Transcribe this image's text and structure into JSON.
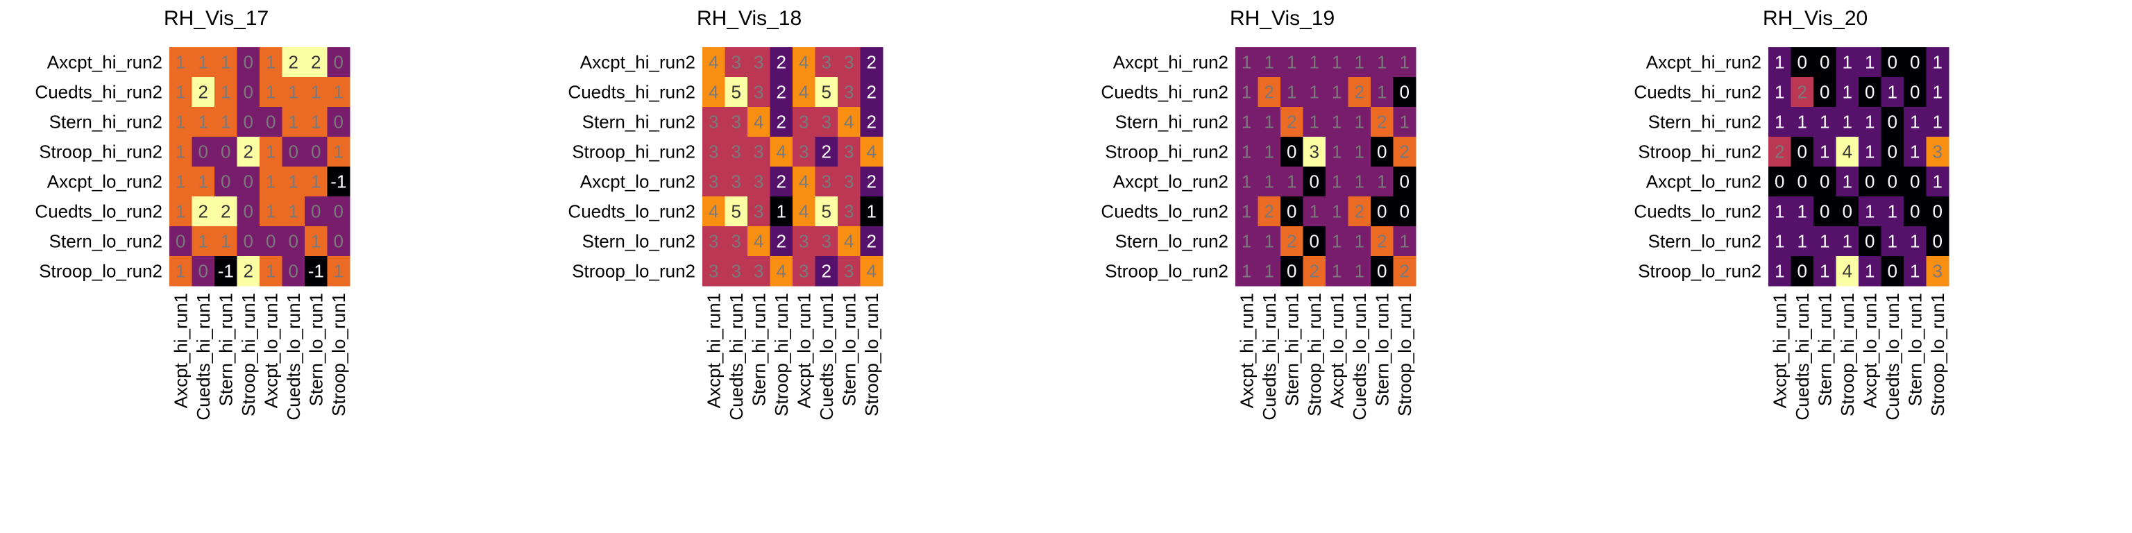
{
  "chart_data": [
    {
      "type": "heatmap",
      "title": "RH_Vis_17",
      "x_labels": [
        "Axcpt_hi_run1",
        "Cuedts_hi_run1",
        "Stern_hi_run1",
        "Stroop_hi_run1",
        "Axcpt_lo_run1",
        "Cuedts_lo_run1",
        "Stern_lo_run1",
        "Stroop_lo_run1"
      ],
      "y_labels": [
        "Axcpt_hi_run2",
        "Cuedts_hi_run2",
        "Stern_hi_run2",
        "Stroop_hi_run2",
        "Axcpt_lo_run2",
        "Cuedts_lo_run2",
        "Stern_lo_run2",
        "Stroop_lo_run2"
      ],
      "values": [
        [
          1,
          1,
          1,
          0,
          1,
          2,
          2,
          0
        ],
        [
          1,
          2,
          1,
          0,
          1,
          1,
          1,
          1
        ],
        [
          1,
          1,
          1,
          0,
          0,
          1,
          1,
          0
        ],
        [
          1,
          0,
          0,
          2,
          1,
          0,
          0,
          1
        ],
        [
          1,
          1,
          0,
          0,
          1,
          1,
          1,
          -1
        ],
        [
          1,
          2,
          2,
          0,
          1,
          1,
          0,
          0
        ],
        [
          0,
          1,
          1,
          0,
          0,
          0,
          1,
          0
        ],
        [
          1,
          0,
          -1,
          2,
          1,
          0,
          -1,
          1
        ]
      ],
      "vmin": -1,
      "vmax": 2,
      "colormap": "inferno"
    },
    {
      "type": "heatmap",
      "title": "RH_Vis_18",
      "x_labels": [
        "Axcpt_hi_run1",
        "Cuedts_hi_run1",
        "Stern_hi_run1",
        "Stroop_hi_run1",
        "Axcpt_lo_run1",
        "Cuedts_lo_run1",
        "Stern_lo_run1",
        "Stroop_lo_run1"
      ],
      "y_labels": [
        "Axcpt_hi_run2",
        "Cuedts_hi_run2",
        "Stern_hi_run2",
        "Stroop_hi_run2",
        "Axcpt_lo_run2",
        "Cuedts_lo_run2",
        "Stern_lo_run2",
        "Stroop_lo_run2"
      ],
      "values": [
        [
          4,
          3,
          3,
          2,
          4,
          3,
          3,
          2
        ],
        [
          4,
          5,
          3,
          2,
          4,
          5,
          3,
          2
        ],
        [
          3,
          3,
          4,
          2,
          3,
          3,
          4,
          2
        ],
        [
          3,
          3,
          3,
          4,
          3,
          2,
          3,
          4
        ],
        [
          3,
          3,
          3,
          2,
          4,
          3,
          3,
          2
        ],
        [
          4,
          5,
          3,
          1,
          4,
          5,
          3,
          1
        ],
        [
          3,
          3,
          4,
          2,
          3,
          3,
          4,
          2
        ],
        [
          3,
          3,
          3,
          4,
          3,
          2,
          3,
          4
        ]
      ],
      "vmin": 1,
      "vmax": 5,
      "colormap": "inferno"
    },
    {
      "type": "heatmap",
      "title": "RH_Vis_19",
      "x_labels": [
        "Axcpt_hi_run1",
        "Cuedts_hi_run1",
        "Stern_hi_run1",
        "Stroop_hi_run1",
        "Axcpt_lo_run1",
        "Cuedts_lo_run1",
        "Stern_lo_run1",
        "Stroop_lo_run1"
      ],
      "y_labels": [
        "Axcpt_hi_run2",
        "Cuedts_hi_run2",
        "Stern_hi_run2",
        "Stroop_hi_run2",
        "Axcpt_lo_run2",
        "Cuedts_lo_run2",
        "Stern_lo_run2",
        "Stroop_lo_run2"
      ],
      "values": [
        [
          1,
          1,
          1,
          1,
          1,
          1,
          1,
          1
        ],
        [
          1,
          2,
          1,
          1,
          1,
          2,
          1,
          0
        ],
        [
          1,
          1,
          2,
          1,
          1,
          1,
          2,
          1
        ],
        [
          1,
          1,
          0,
          3,
          1,
          1,
          0,
          2
        ],
        [
          1,
          1,
          1,
          0,
          1,
          1,
          1,
          0
        ],
        [
          1,
          2,
          0,
          1,
          1,
          2,
          0,
          0
        ],
        [
          1,
          1,
          2,
          0,
          1,
          1,
          2,
          1
        ],
        [
          1,
          1,
          0,
          2,
          1,
          1,
          0,
          2
        ]
      ],
      "vmin": 0,
      "vmax": 3,
      "colormap": "inferno"
    },
    {
      "type": "heatmap",
      "title": "RH_Vis_20",
      "x_labels": [
        "Axcpt_hi_run1",
        "Cuedts_hi_run1",
        "Stern_hi_run1",
        "Stroop_hi_run1",
        "Axcpt_lo_run1",
        "Cuedts_lo_run1",
        "Stern_lo_run1",
        "Stroop_lo_run1"
      ],
      "y_labels": [
        "Axcpt_hi_run2",
        "Cuedts_hi_run2",
        "Stern_hi_run2",
        "Stroop_hi_run2",
        "Axcpt_lo_run2",
        "Cuedts_lo_run2",
        "Stern_lo_run2",
        "Stroop_lo_run2"
      ],
      "values": [
        [
          1,
          0,
          0,
          1,
          1,
          0,
          0,
          1
        ],
        [
          1,
          2,
          0,
          1,
          0,
          1,
          0,
          1
        ],
        [
          1,
          1,
          1,
          1,
          1,
          0,
          1,
          1
        ],
        [
          2,
          0,
          1,
          4,
          1,
          0,
          1,
          3
        ],
        [
          0,
          0,
          0,
          1,
          0,
          0,
          0,
          1
        ],
        [
          1,
          1,
          0,
          0,
          1,
          1,
          0,
          0
        ],
        [
          1,
          1,
          1,
          1,
          0,
          1,
          1,
          0
        ],
        [
          1,
          0,
          1,
          4,
          1,
          0,
          1,
          3
        ]
      ],
      "vmin": 0,
      "vmax": 4,
      "colormap": "inferno"
    }
  ]
}
